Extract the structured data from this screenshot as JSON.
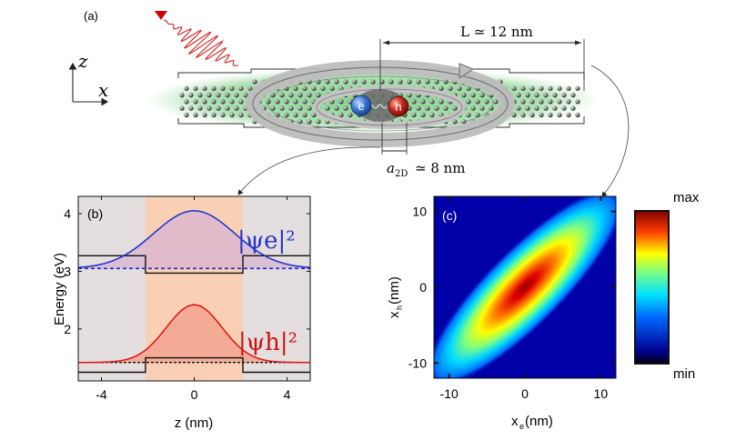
{
  "panel_a": {
    "label": "(a)",
    "axis_z": "z",
    "axis_x": "x",
    "length_label": "L ≃ 12 nm",
    "bohr_label_sym": "a",
    "bohr_label_sub": "2D",
    "bohr_label_val": "≃ 8 nm",
    "electron_label": "e",
    "hole_label": "h"
  },
  "panel_b": {
    "label": "(b)",
    "ylabel": "Energy (eV)",
    "xlabel": "z (nm)",
    "psi_e_label": "|ψe|²",
    "psi_h_label": "|ψh|²",
    "x_ticks": [
      "-4",
      "0",
      "4"
    ],
    "y_ticks": [
      "4",
      "3",
      "2"
    ]
  },
  "panel_c": {
    "label": "(c)",
    "xlabel_main": "x",
    "xlabel_sub": "e",
    "xlabel_unit": " (nm)",
    "ylabel_main": "x",
    "ylabel_sub": "h",
    "ylabel_unit": " (nm)",
    "x_ticks": [
      "-10",
      "0",
      "10"
    ],
    "y_ticks": [
      "10",
      "0",
      "-10"
    ],
    "colorbar_max": "max",
    "colorbar_min": "min"
  },
  "colors": {
    "electron": "#2233cc",
    "hole": "#cc1111",
    "well": "#f9d2b8",
    "barrier": "#e3dcdc",
    "green": "#7fd08a"
  },
  "chart_data": [
    {
      "type": "line",
      "title": "(b)",
      "xlabel": "z (nm)",
      "ylabel": "Energy (eV)",
      "xlim": [
        -5,
        5
      ],
      "ylim": [
        1.1,
        4.3
      ],
      "well_region": [
        -2.1,
        2.1
      ],
      "series": [
        {
          "name": "conduction band edge",
          "x": [
            -5,
            -2.1,
            -2.1,
            2.1,
            2.1,
            5
          ],
          "y": [
            3.27,
            3.27,
            2.97,
            2.97,
            3.27,
            3.27
          ]
        },
        {
          "name": "electron level",
          "y_level": 3.05
        },
        {
          "name": "|ψe|²",
          "center": 0,
          "sigma": 1.75,
          "amplitude": 1.0,
          "baseline": 3.05
        },
        {
          "name": "valence band edge",
          "x": [
            -5,
            -2.1,
            -2.1,
            2.1,
            2.1,
            5
          ],
          "y": [
            1.25,
            1.25,
            1.5,
            1.5,
            1.25,
            1.25
          ]
        },
        {
          "name": "hole level",
          "y_level": 1.42
        },
        {
          "name": "|ψh|²",
          "center": 0,
          "sigma": 1.2,
          "amplitude": 1.0,
          "baseline": 1.42
        }
      ]
    },
    {
      "type": "heatmap",
      "title": "(c)",
      "xlabel": "xe (nm)",
      "ylabel": "xh (nm)",
      "xlim": [
        -12,
        12
      ],
      "ylim": [
        -12,
        12
      ],
      "description_values": {
        "along_diagonal_sigma_nm": 5.5,
        "across_diagonal_sigma_nm": 1.6
      },
      "colorbar": {
        "max_label": "max",
        "min_label": "min"
      }
    }
  ]
}
